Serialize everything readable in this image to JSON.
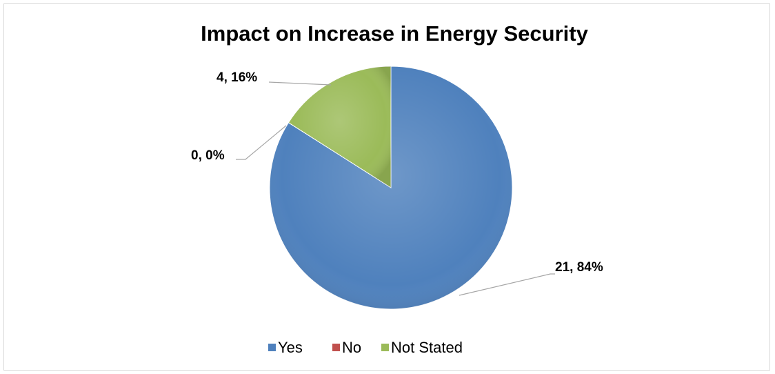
{
  "chart_data": {
    "type": "pie",
    "title": "Impact on Increase in Energy Security",
    "slices": [
      {
        "name": "Yes",
        "value": 21,
        "percent": 84,
        "label": "21, 84%",
        "color": "#4f81bd"
      },
      {
        "name": "No",
        "value": 0,
        "percent": 0,
        "label": "0, 0%",
        "color": "#c0504d"
      },
      {
        "name": "Not Stated",
        "value": 4,
        "percent": 16,
        "label": "4, 16%",
        "color": "#9bbb59"
      }
    ],
    "legend": {
      "position": "bottom",
      "items": [
        "Yes",
        "No",
        "Not Stated"
      ]
    }
  }
}
